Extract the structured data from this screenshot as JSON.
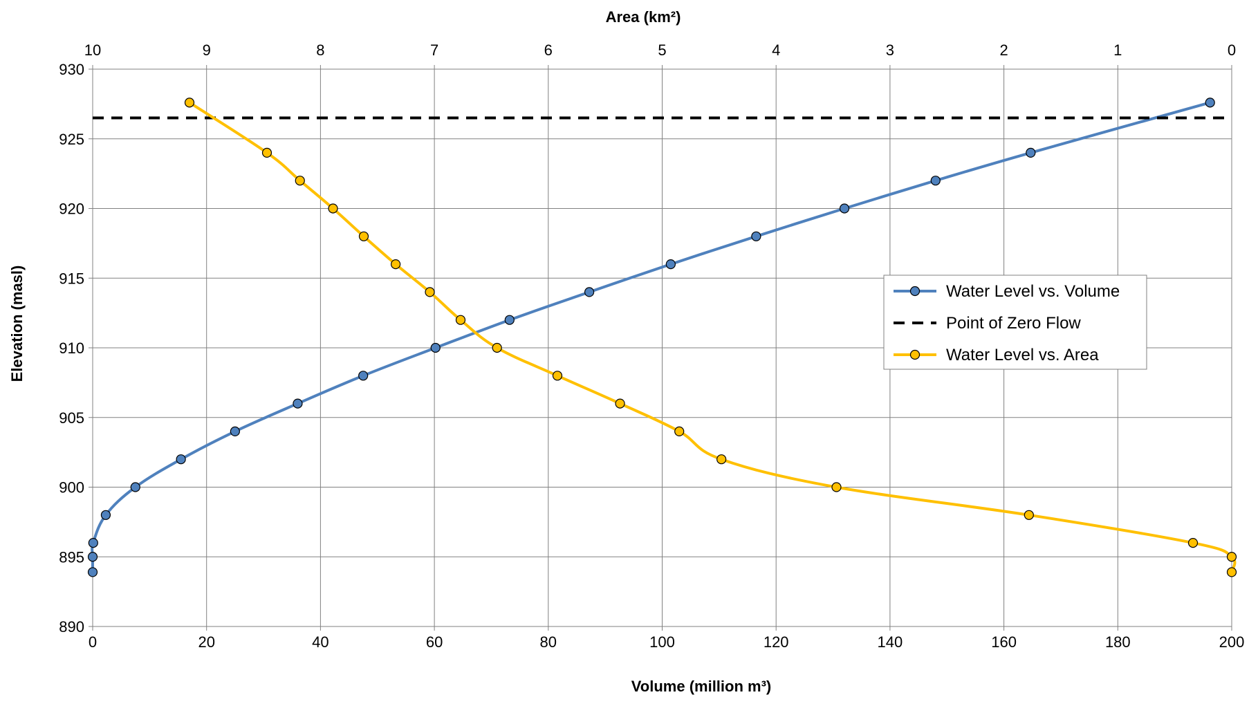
{
  "chart_data": {
    "type": "line",
    "xlabel": "Volume (million m³)",
    "x2label": "Area (km²)",
    "ylabel": "Elevation (masl)",
    "xlim": [
      0,
      200
    ],
    "x2lim": [
      10,
      0
    ],
    "ylim": [
      890,
      930
    ],
    "xticks": [
      0,
      20,
      40,
      60,
      80,
      100,
      120,
      140,
      160,
      180,
      200
    ],
    "x2ticks": [
      10,
      9,
      8,
      7,
      6,
      5,
      4,
      3,
      2,
      1,
      0
    ],
    "yticks": [
      890,
      895,
      900,
      905,
      910,
      915,
      920,
      925,
      930
    ],
    "grid": true,
    "legend_position": "right",
    "series": [
      {
        "name": "Water Level vs. Volume",
        "axis": "bottom",
        "color": "#4F81BD",
        "style": "solid-markers",
        "x": [
          0,
          0,
          0.1,
          2.3,
          7.5,
          15.5,
          25,
          36,
          47.5,
          60.2,
          73.2,
          87.2,
          101.5,
          116.5,
          132,
          148,
          164.7,
          196.2
        ],
        "y": [
          893.9,
          895,
          896,
          898,
          900,
          902,
          904,
          906,
          908,
          910,
          912,
          914,
          916,
          918,
          920,
          922,
          924,
          927.6
        ]
      },
      {
        "name": "Point of Zero Flow",
        "axis": "bottom",
        "color": "#000000",
        "style": "dashed",
        "x": [
          0,
          200
        ],
        "y": [
          926.5,
          926.5
        ]
      },
      {
        "name": "Water Level vs. Area",
        "axis": "top",
        "color": "#FFC000",
        "style": "solid-markers",
        "x": [
          9.15,
          8.47,
          8.18,
          7.89,
          7.62,
          7.34,
          7.04,
          6.77,
          6.45,
          5.92,
          5.37,
          4.85,
          4.48,
          3.47,
          1.78,
          0.34,
          0,
          0
        ],
        "y": [
          927.6,
          924,
          922,
          920,
          918,
          916,
          914,
          912,
          910,
          908,
          906,
          904,
          902,
          900,
          898,
          896,
          895,
          893.9
        ]
      }
    ]
  }
}
